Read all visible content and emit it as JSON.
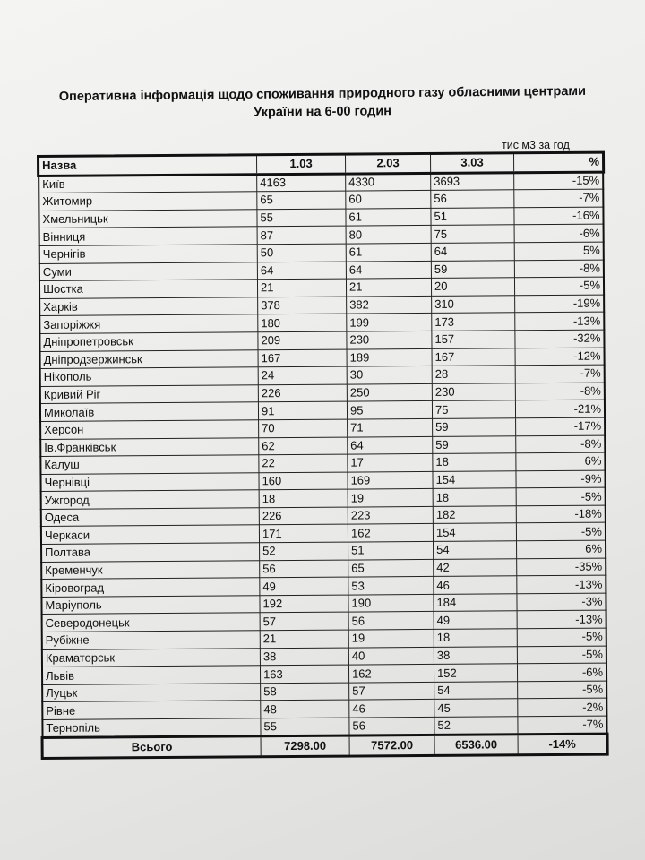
{
  "document": {
    "title_line1": "Оперативна інформація щодо споживання природного газу обласними центрами",
    "title_line2": "України на 6-00 годин",
    "unit": "тис м3 за год"
  },
  "table": {
    "headers": [
      "Назва",
      "1.03",
      "2.03",
      "3.03",
      "%"
    ],
    "rows": [
      [
        "Київ",
        "4163",
        "4330",
        "3693",
        "-15%"
      ],
      [
        "Житомир",
        "65",
        "60",
        "56",
        "-7%"
      ],
      [
        "Хмельницьк",
        "55",
        "61",
        "51",
        "-16%"
      ],
      [
        "Вінниця",
        "87",
        "80",
        "75",
        "-6%"
      ],
      [
        "Чернігів",
        "50",
        "61",
        "64",
        "5%"
      ],
      [
        "Суми",
        "64",
        "64",
        "59",
        "-8%"
      ],
      [
        "Шостка",
        "21",
        "21",
        "20",
        "-5%"
      ],
      [
        "Харків",
        "378",
        "382",
        "310",
        "-19%"
      ],
      [
        "Запоріжжя",
        "180",
        "199",
        "173",
        "-13%"
      ],
      [
        "Дніпропетровськ",
        "209",
        "230",
        "157",
        "-32%"
      ],
      [
        "Дніпродзержинськ",
        "167",
        "189",
        "167",
        "-12%"
      ],
      [
        "Нікополь",
        "24",
        "30",
        "28",
        "-7%"
      ],
      [
        "Кривий Ріг",
        "226",
        "250",
        "230",
        "-8%"
      ],
      [
        "Миколаїв",
        "91",
        "95",
        "75",
        "-21%"
      ],
      [
        "Херсон",
        "70",
        "71",
        "59",
        "-17%"
      ],
      [
        "Ів.Франківськ",
        "62",
        "64",
        "59",
        "-8%"
      ],
      [
        "Калуш",
        "22",
        "17",
        "18",
        "6%"
      ],
      [
        "Чернівці",
        "160",
        "169",
        "154",
        "-9%"
      ],
      [
        "Ужгород",
        "18",
        "19",
        "18",
        "-5%"
      ],
      [
        "Одеса",
        "226",
        "223",
        "182",
        "-18%"
      ],
      [
        "Черкаси",
        "171",
        "162",
        "154",
        "-5%"
      ],
      [
        "Полтава",
        "52",
        "51",
        "54",
        "6%"
      ],
      [
        "Кременчук",
        "56",
        "65",
        "42",
        "-35%"
      ],
      [
        "Кіровоград",
        "49",
        "53",
        "46",
        "-13%"
      ],
      [
        "Маріуполь",
        "192",
        "190",
        "184",
        "-3%"
      ],
      [
        "Северодонецьк",
        "57",
        "56",
        "49",
        "-13%"
      ],
      [
        "Рубіжне",
        "21",
        "19",
        "18",
        "-5%"
      ],
      [
        "Краматорськ",
        "38",
        "40",
        "38",
        "-5%"
      ],
      [
        "Львів",
        "163",
        "162",
        "152",
        "-6%"
      ],
      [
        "Луцьк",
        "58",
        "57",
        "54",
        "-5%"
      ],
      [
        "Рівне",
        "48",
        "46",
        "45",
        "-2%"
      ],
      [
        "Тернопіль",
        "55",
        "56",
        "52",
        "-7%"
      ]
    ],
    "total": [
      "Всього",
      "7298.00",
      "7572.00",
      "6536.00",
      "-14%"
    ]
  }
}
